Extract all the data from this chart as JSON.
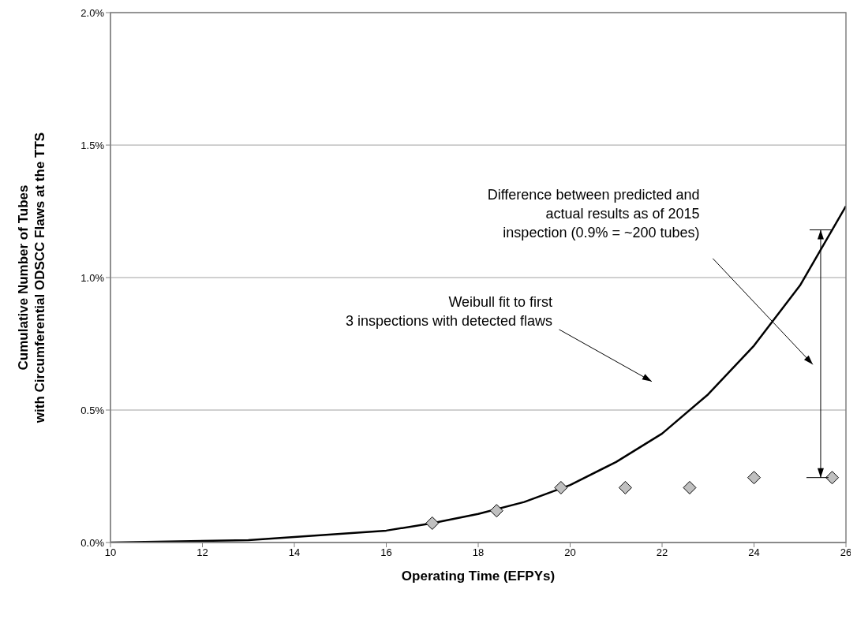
{
  "chart_data": {
    "type": "line",
    "xlabel": "Operating Time (EFPYs)",
    "ylabel": "Cumulative Number of Tubes\nwith Circumferential ODSCC Flaws at the TTS",
    "series": [
      {
        "type": "line",
        "color": "#000000",
        "x": [
          10,
          13,
          16,
          17,
          18,
          19,
          20,
          21,
          22,
          23,
          24,
          25,
          26
        ],
        "values": [
          0,
          0.009,
          0.045,
          0.073,
          0.108,
          0.153,
          0.217,
          0.304,
          0.411,
          0.559,
          0.743,
          0.97,
          1.27
        ]
      },
      {
        "type": "scatter",
        "color": "#c0c0c0",
        "marker": "diamond",
        "x": [
          17,
          18.4,
          19.8,
          21.2,
          22.6,
          24,
          25.7
        ],
        "values": [
          0.073,
          0.12,
          0.207,
          0.207,
          0.207,
          0.245,
          0.245
        ]
      }
    ],
    "xlim": [
      10,
      26
    ],
    "xticks": [
      10,
      12,
      14,
      16,
      18,
      20,
      22,
      24,
      26
    ],
    "ylim": [
      0,
      2
    ],
    "yticks": [
      {
        "value": 0,
        "label": "0.0%"
      },
      {
        "value": 0.5,
        "label": "0.5%"
      },
      {
        "value": 1,
        "label": "1.0%"
      },
      {
        "value": 1.5,
        "label": "1.5%"
      },
      {
        "value": 2,
        "label": "2.0%"
      }
    ],
    "grid": "y",
    "annotations": [
      "Weibull fit to first\n3 inspections with detected flaws",
      "Difference between predicted and\nactual results as of 2015\ninspection (0.9% = ~200 tubes)"
    ]
  }
}
